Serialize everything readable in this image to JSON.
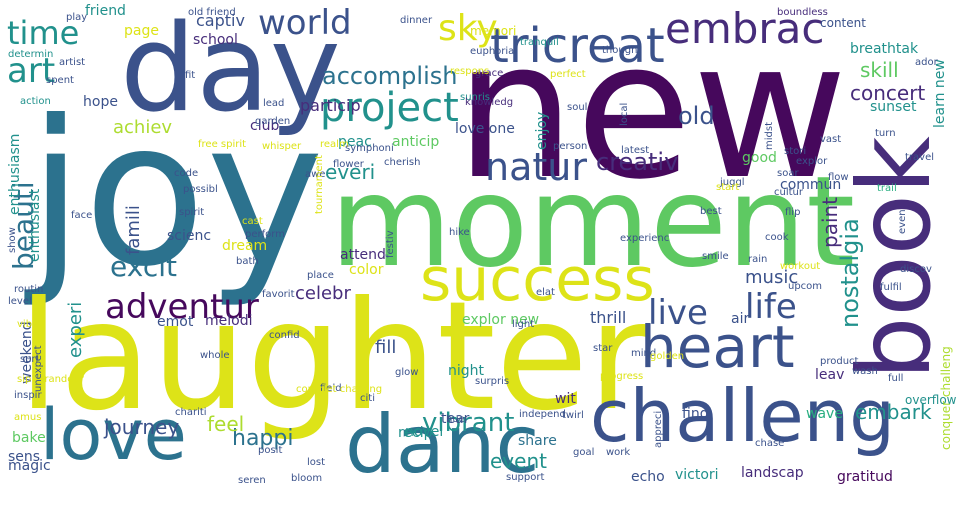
{
  "palette": {
    "dark_purple": "#46085c",
    "indigo": "#472d7b",
    "slate_blue": "#3b528b",
    "steel_blue": "#2c728e",
    "teal": "#21918c",
    "sea_green": "#28ae80",
    "green": "#5ec962",
    "lime": "#addc30",
    "yellow": "#dde318",
    "pale_yellow": "#e8e419",
    "background": "#ffffff"
  },
  "words": [
    {
      "text": "new",
      "color": "dark_purple",
      "orient": "h"
    },
    {
      "text": "joy",
      "color": "steel_blue",
      "orient": "h"
    },
    {
      "text": "moment",
      "color": "green",
      "orient": "h"
    },
    {
      "text": "laughter",
      "color": "yellow",
      "orient": "h"
    },
    {
      "text": "day",
      "color": "slate_blue",
      "orient": "h"
    },
    {
      "text": "book",
      "color": "indigo",
      "orient": "v"
    },
    {
      "text": "challeng",
      "color": "slate_blue",
      "orient": "h"
    },
    {
      "text": "danc",
      "color": "steel_blue",
      "orient": "h"
    },
    {
      "text": "success",
      "color": "yellow",
      "orient": "h"
    },
    {
      "text": "love",
      "color": "steel_blue",
      "orient": "h"
    },
    {
      "text": "heart",
      "color": "slate_blue",
      "orient": "h"
    },
    {
      "text": "tricreat",
      "color": "slate_blue",
      "orient": "h"
    },
    {
      "text": "embrac",
      "color": "indigo",
      "orient": "h"
    },
    {
      "text": "natur",
      "color": "slate_blue",
      "orient": "h"
    },
    {
      "text": "project",
      "color": "teal",
      "orient": "h"
    },
    {
      "text": "adventur",
      "color": "dark_purple",
      "orient": "h"
    },
    {
      "text": "excit",
      "color": "steel_blue",
      "orient": "h"
    },
    {
      "text": "world",
      "color": "slate_blue",
      "orient": "h"
    },
    {
      "text": "time",
      "color": "teal",
      "orient": "h"
    },
    {
      "text": "art",
      "color": "teal",
      "orient": "h"
    },
    {
      "text": "sky",
      "color": "yellow",
      "orient": "h"
    },
    {
      "text": "beauti",
      "color": "steel_blue",
      "orient": "v"
    },
    {
      "text": "life",
      "color": "slate_blue",
      "orient": "h"
    },
    {
      "text": "live",
      "color": "slate_blue",
      "orient": "h"
    },
    {
      "text": "accomplish",
      "color": "steel_blue",
      "orient": "h"
    },
    {
      "text": "creativ",
      "color": "indigo",
      "orient": "h"
    },
    {
      "text": "vibrant",
      "color": "teal",
      "orient": "h"
    },
    {
      "text": "embark",
      "color": "teal",
      "orient": "h"
    },
    {
      "text": "happi",
      "color": "steel_blue",
      "orient": "h"
    },
    {
      "text": "journey",
      "color": "slate_blue",
      "orient": "h"
    },
    {
      "text": "feel",
      "color": "lime",
      "orient": "h"
    },
    {
      "text": "nostalgia",
      "color": "teal",
      "orient": "v"
    },
    {
      "text": "old",
      "color": "slate_blue",
      "orient": "h"
    },
    {
      "text": "achiev",
      "color": "lime",
      "orient": "h"
    },
    {
      "text": "concert",
      "color": "indigo",
      "orient": "h"
    },
    {
      "text": "skill",
      "color": "green",
      "orient": "h"
    },
    {
      "text": "event",
      "color": "teal",
      "orient": "h"
    },
    {
      "text": "music",
      "color": "slate_blue",
      "orient": "h"
    },
    {
      "text": "famili",
      "color": "slate_blue",
      "orient": "v"
    },
    {
      "text": "paint",
      "color": "indigo",
      "orient": "v"
    },
    {
      "text": "fill",
      "color": "slate_blue",
      "orient": "h"
    },
    {
      "text": "thrill",
      "color": "slate_blue",
      "orient": "h"
    },
    {
      "text": "celebr",
      "color": "indigo",
      "orient": "h"
    },
    {
      "text": "everi",
      "color": "teal",
      "orient": "h"
    },
    {
      "text": "experi",
      "color": "teal",
      "orient": "v"
    },
    {
      "text": "particip",
      "color": "indigo",
      "orient": "h"
    },
    {
      "text": "captiv",
      "color": "slate_blue",
      "orient": "h"
    },
    {
      "text": "sunset",
      "color": "teal",
      "orient": "h"
    },
    {
      "text": "breathtak",
      "color": "teal",
      "orient": "h"
    },
    {
      "text": "learn new",
      "color": "teal",
      "orient": "v"
    },
    {
      "text": "enthusiasm",
      "color": "teal",
      "orient": "v"
    },
    {
      "text": "enthusiast",
      "color": "teal",
      "orient": "v"
    },
    {
      "text": "hope",
      "color": "slate_blue",
      "orient": "h"
    },
    {
      "text": "club",
      "color": "indigo",
      "orient": "h"
    },
    {
      "text": "school",
      "color": "indigo",
      "orient": "h"
    },
    {
      "text": "friend",
      "color": "teal",
      "orient": "h"
    },
    {
      "text": "love one",
      "color": "slate_blue",
      "orient": "h"
    },
    {
      "text": "memori",
      "color": "yellow",
      "orient": "h"
    },
    {
      "text": "page",
      "color": "yellow",
      "orient": "h"
    },
    {
      "text": "attend",
      "color": "indigo",
      "orient": "h"
    },
    {
      "text": "peac",
      "color": "teal",
      "orient": "h"
    },
    {
      "text": "anticip",
      "color": "green",
      "orient": "h"
    },
    {
      "text": "enjoy",
      "color": "teal",
      "orient": "v"
    },
    {
      "text": "good",
      "color": "green",
      "orient": "h"
    },
    {
      "text": "commun",
      "color": "slate_blue",
      "orient": "h"
    },
    {
      "text": "scienc",
      "color": "slate_blue",
      "orient": "h"
    },
    {
      "text": "dream",
      "color": "yellow",
      "orient": "h"
    },
    {
      "text": "color",
      "color": "yellow",
      "orient": "h"
    },
    {
      "text": "emot",
      "color": "slate_blue",
      "orient": "h"
    },
    {
      "text": "melodi",
      "color": "indigo",
      "orient": "h"
    },
    {
      "text": "air",
      "color": "slate_blue",
      "orient": "h"
    },
    {
      "text": "explor new",
      "color": "green",
      "orient": "h"
    },
    {
      "text": "night",
      "color": "teal",
      "orient": "h"
    },
    {
      "text": "tear",
      "color": "slate_blue",
      "orient": "h"
    },
    {
      "text": "wit",
      "color": "indigo",
      "orient": "h"
    },
    {
      "text": "novel",
      "color": "teal",
      "orient": "h"
    },
    {
      "text": "recip",
      "color": "teal",
      "orient": "h"
    },
    {
      "text": "share",
      "color": "steel_blue",
      "orient": "h"
    },
    {
      "text": "find",
      "color": "slate_blue",
      "orient": "h"
    },
    {
      "text": "wave",
      "color": "sea_green",
      "orient": "h"
    },
    {
      "text": "leav",
      "color": "indigo",
      "orient": "h"
    },
    {
      "text": "echo",
      "color": "slate_blue",
      "orient": "h"
    },
    {
      "text": "victori",
      "color": "teal",
      "orient": "h"
    },
    {
      "text": "landscap",
      "color": "indigo",
      "orient": "h"
    },
    {
      "text": "gratitud",
      "color": "dark_purple",
      "orient": "h"
    },
    {
      "text": "bake",
      "color": "green",
      "orient": "h"
    },
    {
      "text": "sens",
      "color": "slate_blue",
      "orient": "h"
    },
    {
      "text": "magic",
      "color": "slate_blue",
      "orient": "h"
    },
    {
      "text": "weekend",
      "color": "slate_blue",
      "orient": "v"
    },
    {
      "text": "overflow",
      "color": "teal",
      "orient": "h"
    },
    {
      "text": "conquer challeng",
      "color": "lime",
      "orient": "v"
    },
    {
      "text": "content",
      "color": "slate_blue",
      "orient": "h"
    },
    {
      "text": "boundless",
      "color": "indigo",
      "orient": "h"
    },
    {
      "text": "tranquil",
      "color": "teal",
      "orient": "h"
    },
    {
      "text": "thought",
      "color": "slate_blue",
      "orient": "h"
    },
    {
      "text": "euphoria",
      "color": "slate_blue",
      "orient": "h"
    },
    {
      "text": "grace",
      "color": "indigo",
      "orient": "h"
    },
    {
      "text": "sunris",
      "color": "teal",
      "orient": "h"
    },
    {
      "text": "soul",
      "color": "slate_blue",
      "orient": "h"
    },
    {
      "text": "perfect",
      "color": "yellow",
      "orient": "h"
    },
    {
      "text": "knowledg",
      "color": "indigo",
      "orient": "h"
    },
    {
      "text": "dinner",
      "color": "slate_blue",
      "orient": "h"
    },
    {
      "text": "old friend",
      "color": "slate_blue",
      "orient": "h"
    },
    {
      "text": "play",
      "color": "slate_blue",
      "orient": "h"
    },
    {
      "text": "determin",
      "color": "teal",
      "orient": "h"
    },
    {
      "text": "artist",
      "color": "slate_blue",
      "orient": "h"
    },
    {
      "text": "spent",
      "color": "slate_blue",
      "orient": "h"
    },
    {
      "text": "action",
      "color": "teal",
      "orient": "h"
    },
    {
      "text": "fit",
      "color": "slate_blue",
      "orient": "h"
    },
    {
      "text": "lead",
      "color": "slate_blue",
      "orient": "h"
    },
    {
      "text": "garden",
      "color": "slate_blue",
      "orient": "h"
    },
    {
      "text": "free spirit",
      "color": "yellow",
      "orient": "h"
    },
    {
      "text": "whisper",
      "color": "yellow",
      "orient": "h"
    },
    {
      "text": "realm",
      "color": "yellow",
      "orient": "h"
    },
    {
      "text": "symphoni",
      "color": "slate_blue",
      "orient": "h"
    },
    {
      "text": "flower",
      "color": "slate_blue",
      "orient": "h"
    },
    {
      "text": "cherish",
      "color": "slate_blue",
      "orient": "h"
    },
    {
      "text": "person",
      "color": "slate_blue",
      "orient": "h"
    },
    {
      "text": "latest",
      "color": "slate_blue",
      "orient": "h"
    },
    {
      "text": "stori",
      "color": "slate_blue",
      "orient": "h"
    },
    {
      "text": "local",
      "color": "slate_blue",
      "orient": "v"
    },
    {
      "text": "midst",
      "color": "slate_blue",
      "orient": "v"
    },
    {
      "text": "turn",
      "color": "slate_blue",
      "orient": "h"
    },
    {
      "text": "vast",
      "color": "slate_blue",
      "orient": "h"
    },
    {
      "text": "travel",
      "color": "slate_blue",
      "orient": "h"
    },
    {
      "text": "explor",
      "color": "slate_blue",
      "orient": "h"
    },
    {
      "text": "flow",
      "color": "slate_blue",
      "orient": "h"
    },
    {
      "text": "soar",
      "color": "slate_blue",
      "orient": "h"
    },
    {
      "text": "trail",
      "color": "sea_green",
      "orient": "h"
    },
    {
      "text": "juggl",
      "color": "slate_blue",
      "orient": "h"
    },
    {
      "text": "start",
      "color": "yellow",
      "orient": "h"
    },
    {
      "text": "cultur",
      "color": "slate_blue",
      "orient": "h"
    },
    {
      "text": "flip",
      "color": "slate_blue",
      "orient": "h"
    },
    {
      "text": "code",
      "color": "slate_blue",
      "orient": "h"
    },
    {
      "text": "awe",
      "color": "slate_blue",
      "orient": "h"
    },
    {
      "text": "possibl",
      "color": "slate_blue",
      "orient": "h"
    },
    {
      "text": "spirit",
      "color": "slate_blue",
      "orient": "h"
    },
    {
      "text": "face",
      "color": "slate_blue",
      "orient": "h"
    },
    {
      "text": "cast",
      "color": "yellow",
      "orient": "h"
    },
    {
      "text": "perform",
      "color": "slate_blue",
      "orient": "h"
    },
    {
      "text": "tournament",
      "color": "yellow",
      "orient": "v"
    },
    {
      "text": "festiv",
      "color": "slate_blue",
      "orient": "v"
    },
    {
      "text": "hike",
      "color": "slate_blue",
      "orient": "h"
    },
    {
      "text": "experienc",
      "color": "slate_blue",
      "orient": "h"
    },
    {
      "text": "best",
      "color": "slate_blue",
      "orient": "h"
    },
    {
      "text": "cook",
      "color": "slate_blue",
      "orient": "h"
    },
    {
      "text": "smile",
      "color": "slate_blue",
      "orient": "h"
    },
    {
      "text": "rain",
      "color": "slate_blue",
      "orient": "h"
    },
    {
      "text": "even",
      "color": "slate_blue",
      "orient": "v"
    },
    {
      "text": "discov",
      "color": "slate_blue",
      "orient": "h"
    },
    {
      "text": "show",
      "color": "slate_blue",
      "orient": "v"
    },
    {
      "text": "routin",
      "color": "slate_blue",
      "orient": "h"
    },
    {
      "text": "bath",
      "color": "slate_blue",
      "orient": "h"
    },
    {
      "text": "level",
      "color": "slate_blue",
      "orient": "h"
    },
    {
      "text": "vibe",
      "color": "yellow",
      "orient": "h"
    },
    {
      "text": "favorit",
      "color": "slate_blue",
      "orient": "h"
    },
    {
      "text": "place",
      "color": "slate_blue",
      "orient": "h"
    },
    {
      "text": "workout",
      "color": "yellow",
      "orient": "h"
    },
    {
      "text": "upcom",
      "color": "slate_blue",
      "orient": "h"
    },
    {
      "text": "fulfil",
      "color": "slate_blue",
      "orient": "h"
    },
    {
      "text": "elat",
      "color": "slate_blue",
      "orient": "h"
    },
    {
      "text": "confid",
      "color": "slate_blue",
      "orient": "h"
    },
    {
      "text": "light",
      "color": "slate_blue",
      "orient": "h"
    },
    {
      "text": "star",
      "color": "slate_blue",
      "orient": "h"
    },
    {
      "text": "mind",
      "color": "slate_blue",
      "orient": "h"
    },
    {
      "text": "golden",
      "color": "yellow",
      "orient": "h"
    },
    {
      "text": "product",
      "color": "slate_blue",
      "orient": "h"
    },
    {
      "text": "wash",
      "color": "slate_blue",
      "orient": "h"
    },
    {
      "text": "full",
      "color": "slate_blue",
      "orient": "h"
    },
    {
      "text": "seri",
      "color": "slate_blue",
      "orient": "h"
    },
    {
      "text": "inspir",
      "color": "slate_blue",
      "orient": "h"
    },
    {
      "text": "whole",
      "color": "slate_blue",
      "orient": "h"
    },
    {
      "text": "sip",
      "color": "yellow",
      "orient": "h"
    },
    {
      "text": "grandeur",
      "color": "yellow",
      "orient": "h"
    },
    {
      "text": "field",
      "color": "slate_blue",
      "orient": "h"
    },
    {
      "text": "glow",
      "color": "slate_blue",
      "orient": "h"
    },
    {
      "text": "surpris",
      "color": "slate_blue",
      "orient": "h"
    },
    {
      "text": "progress",
      "color": "yellow",
      "orient": "h"
    },
    {
      "text": "unexpect",
      "color": "slate_blue",
      "orient": "v"
    },
    {
      "text": "citi",
      "color": "slate_blue",
      "orient": "h"
    },
    {
      "text": "amus",
      "color": "yellow",
      "orient": "h"
    },
    {
      "text": "chariti",
      "color": "slate_blue",
      "orient": "h"
    },
    {
      "text": "hue",
      "color": "slate_blue",
      "orient": "h"
    },
    {
      "text": "independ",
      "color": "slate_blue",
      "orient": "h"
    },
    {
      "text": "twirl",
      "color": "slate_blue",
      "orient": "h"
    },
    {
      "text": "posit",
      "color": "slate_blue",
      "orient": "h"
    },
    {
      "text": "lost",
      "color": "slate_blue",
      "orient": "h"
    },
    {
      "text": "work",
      "color": "slate_blue",
      "orient": "h"
    },
    {
      "text": "goal",
      "color": "slate_blue",
      "orient": "h"
    },
    {
      "text": "chase",
      "color": "slate_blue",
      "orient": "h"
    },
    {
      "text": "appreci",
      "color": "slate_blue",
      "orient": "v"
    },
    {
      "text": "seren",
      "color": "slate_blue",
      "orient": "h"
    },
    {
      "text": "bloom",
      "color": "slate_blue",
      "orient": "h"
    },
    {
      "text": "support",
      "color": "slate_blue",
      "orient": "h"
    },
    {
      "text": "complet challeng",
      "color": "yellow",
      "orient": "h"
    },
    {
      "text": "respons",
      "color": "yellow",
      "orient": "h"
    },
    {
      "text": "ador",
      "color": "slate_blue",
      "orient": "h"
    },
    {
      "text": "tale",
      "color": "slate_blue",
      "orient": "h"
    }
  ]
}
